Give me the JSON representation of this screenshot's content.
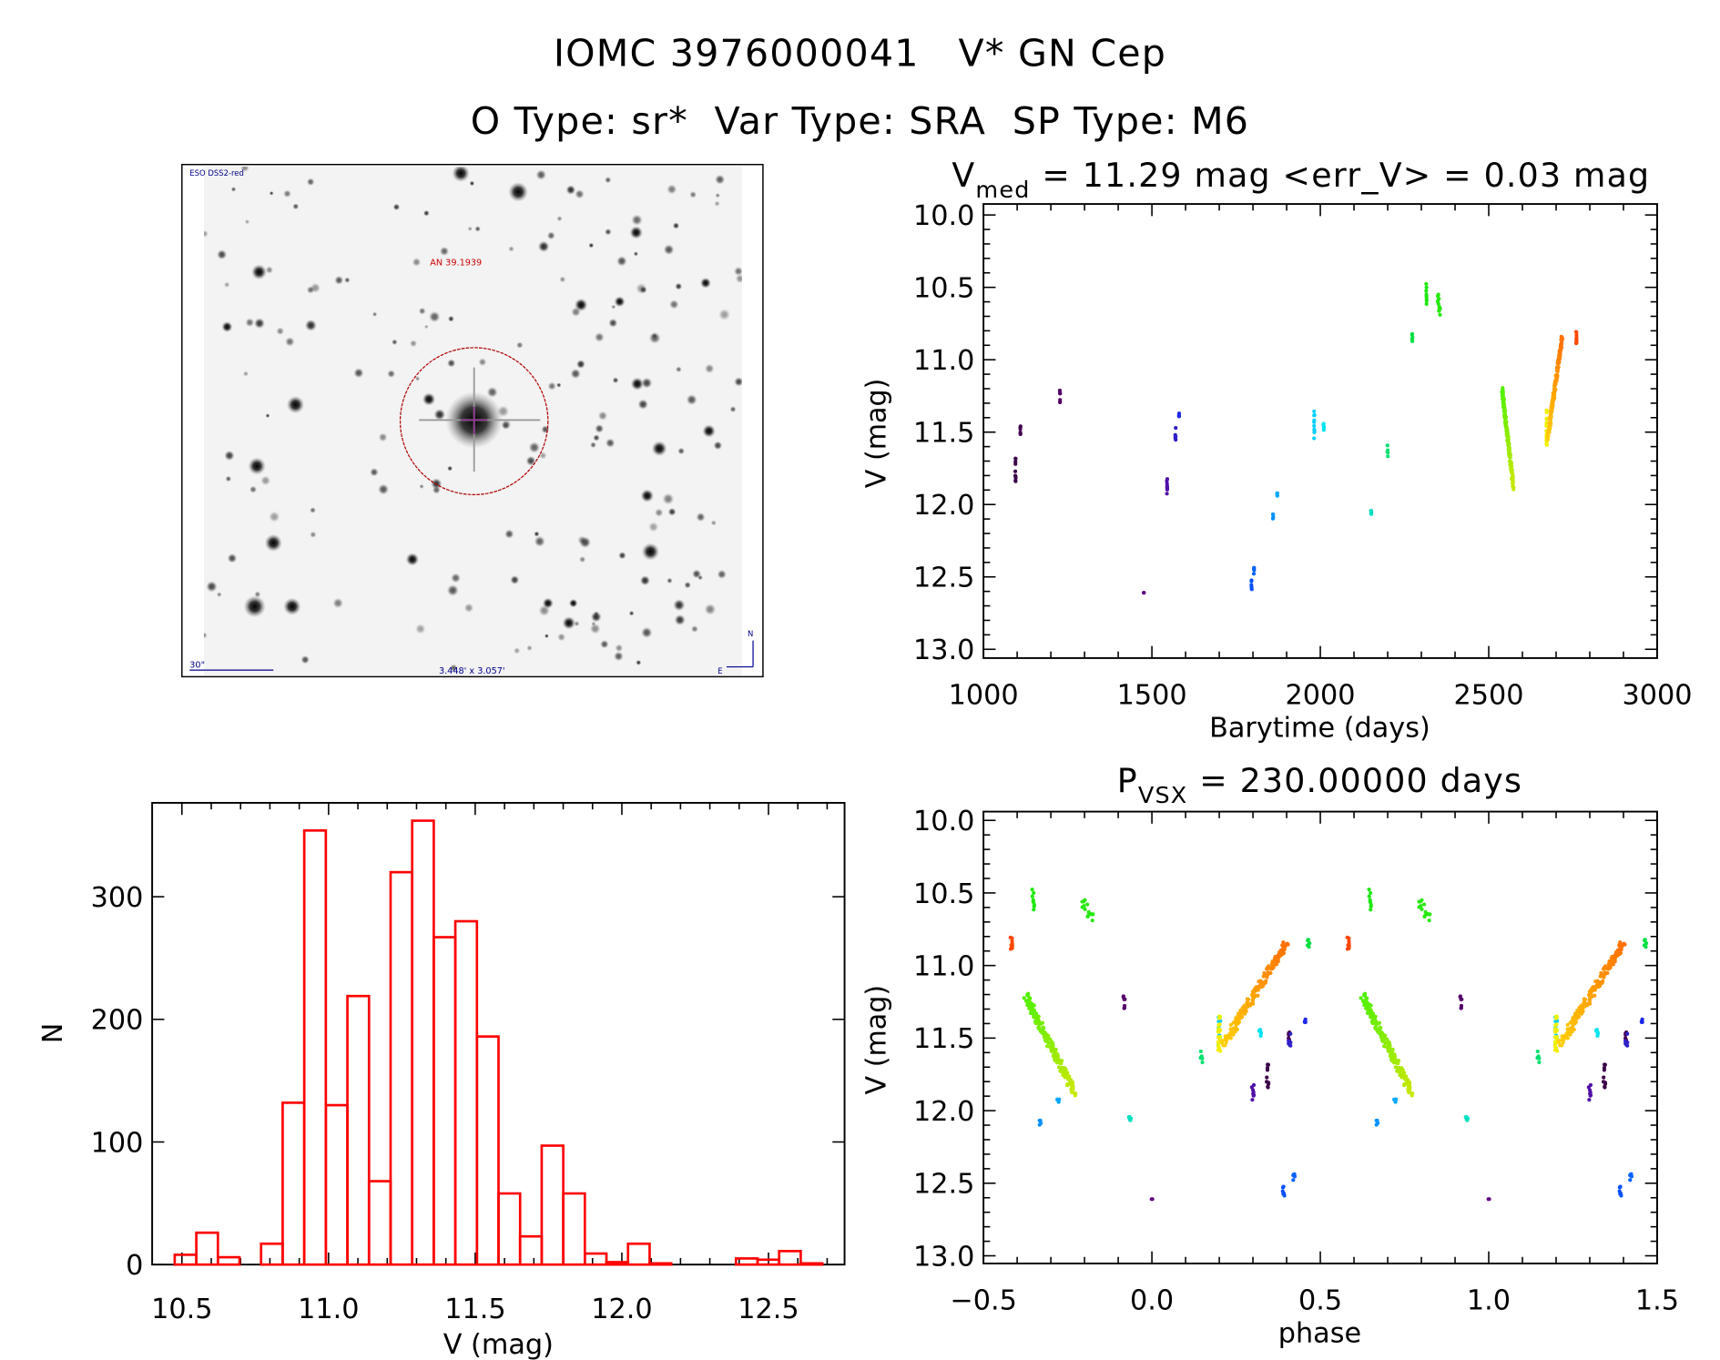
{
  "header": {
    "title": "IOMC 3976000041   V* GN Cep",
    "subtitle": "O Type: sr*  Var Type: SRA  SP Type: M6"
  },
  "image_panel": {
    "survey_label": "ESO DSS2-red",
    "target_label": "AN 39.1939",
    "scale_label": "30\"",
    "fov_label": "3.448' x 3.057'",
    "north_label": "N",
    "east_label": "E"
  },
  "chart_data": [
    {
      "id": "lightcurve",
      "type": "scatter",
      "title": {
        "main": "V",
        "sub": "med",
        "rest": " = 11.29 mag <err_V> = 0.03 mag"
      },
      "xlabel": "Barytime (days)",
      "ylabel": "V (mag)",
      "xlim": [
        1000,
        3000
      ],
      "ylim": [
        13.0,
        10.0
      ],
      "y_inverted": true,
      "xticks": [
        "1000",
        "1500",
        "2000",
        "2500",
        "3000"
      ],
      "yticks": [
        "10.0",
        "10.5",
        "11.0",
        "11.5",
        "12.0",
        "12.5",
        "13.0"
      ],
      "color_coding": "rainbow by time",
      "segments_columns": [
        "t_start",
        "t_end",
        "V_start",
        "V_end",
        "n_points",
        "color_start",
        "color_end"
      ],
      "segments": [
        [
          1095,
          1095,
          11.68,
          11.87,
          10,
          "#3a0048",
          "#3a0048"
        ],
        [
          1110,
          1110,
          11.46,
          11.54,
          6,
          "#420050",
          "#420050"
        ],
        [
          1227,
          1227,
          11.18,
          11.31,
          8,
          "#520068",
          "#520068"
        ],
        [
          1476,
          1476,
          12.6,
          12.61,
          2,
          "#620080",
          "#620080"
        ],
        [
          1545,
          1545,
          11.8,
          11.93,
          9,
          "#5010a8",
          "#5010a8"
        ],
        [
          1570,
          1570,
          11.47,
          11.56,
          7,
          "#3020c8",
          "#3020c8"
        ],
        [
          1581,
          1581,
          11.37,
          11.42,
          5,
          "#1c28e8",
          "#1c28e8"
        ],
        [
          1796,
          1796,
          12.52,
          12.6,
          6,
          "#0050ff",
          "#0050ff"
        ],
        [
          1803,
          1803,
          12.42,
          12.48,
          5,
          "#0062ff",
          "#0062ff"
        ],
        [
          1860,
          1860,
          12.06,
          12.1,
          4,
          "#0090ff",
          "#0090ff"
        ],
        [
          1872,
          1872,
          11.92,
          11.95,
          4,
          "#00a8ff",
          "#00a8ff"
        ],
        [
          1982,
          1982,
          11.35,
          11.56,
          10,
          "#00d0ff",
          "#00d0ff"
        ],
        [
          2010,
          2010,
          11.42,
          11.5,
          6,
          "#00e4f0",
          "#00e4f0"
        ],
        [
          2151,
          2151,
          12.0,
          12.08,
          5,
          "#00e0c0",
          "#00e0c0"
        ],
        [
          2200,
          2200,
          11.59,
          11.68,
          7,
          "#00e070",
          "#00e070"
        ],
        [
          2273,
          2273,
          10.82,
          10.89,
          6,
          "#00e040",
          "#00e040"
        ],
        [
          2315,
          2315,
          10.47,
          10.62,
          9,
          "#20e810",
          "#20e810"
        ],
        [
          2348,
          2356,
          10.56,
          10.68,
          14,
          "#28e810",
          "#28e810"
        ],
        [
          2540,
          2573,
          11.22,
          11.87,
          180,
          "#50f000",
          "#c8e800"
        ],
        [
          2672,
          2672,
          11.35,
          11.59,
          25,
          "#f0f000",
          "#f0f000"
        ],
        [
          2675,
          2718,
          11.54,
          10.84,
          160,
          "#ffd000",
          "#ff7000"
        ],
        [
          2760,
          2760,
          10.8,
          10.89,
          10,
          "#ff4800",
          "#ff4800"
        ]
      ]
    },
    {
      "id": "phased",
      "type": "scatter",
      "title": {
        "main": "P",
        "sub": "VSX",
        "rest": " = 230.00000 days"
      },
      "period_days": 230.0,
      "xlabel": "phase",
      "ylabel": "V (mag)",
      "xlim": [
        -0.5,
        1.5
      ],
      "ylim": [
        13.0,
        10.0
      ],
      "y_inverted": true,
      "xticks": [
        "−0.5",
        "0.0",
        "0.5",
        "1.0",
        "1.5"
      ],
      "yticks": [
        "10.0",
        "10.5",
        "11.0",
        "11.5",
        "12.0",
        "12.5",
        "13.0"
      ],
      "source": "lightcurve points folded on period"
    },
    {
      "id": "histogram",
      "type": "bar",
      "style": "step histogram",
      "color": "#ff0000",
      "xlabel": "V (mag)",
      "ylabel": "N",
      "xlim": [
        10.4,
        12.75
      ],
      "ylim": [
        0,
        376
      ],
      "xticks": [
        "10.5",
        "11.0",
        "11.5",
        "12.0",
        "12.5"
      ],
      "yticks": [
        "0",
        "100",
        "200",
        "300"
      ],
      "bin_start": 10.4755,
      "bin_width": 0.0736,
      "counts": [
        8,
        26,
        6,
        0,
        17,
        132,
        354,
        130,
        219,
        68,
        320,
        362,
        267,
        280,
        186,
        58,
        23,
        97,
        58,
        9,
        2,
        17,
        1,
        0,
        0,
        0,
        5,
        4,
        11,
        1
      ]
    }
  ]
}
